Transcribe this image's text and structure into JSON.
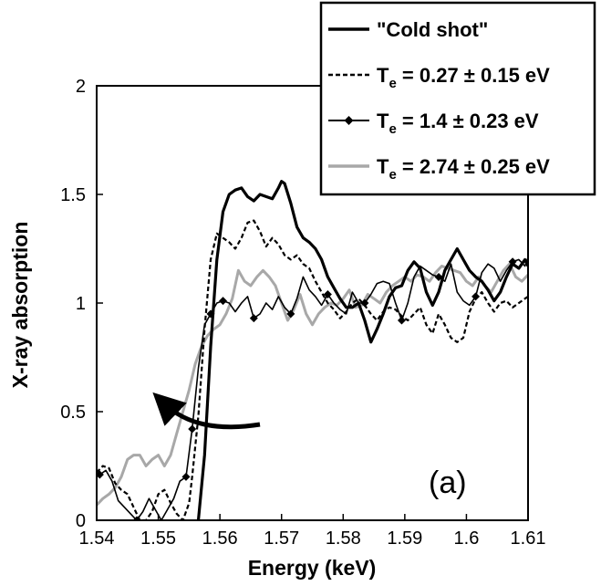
{
  "chart_data": {
    "type": "line",
    "title": "",
    "xlabel": "Energy (keV)",
    "ylabel": "X-ray absorption",
    "panel_label": "(a)",
    "xlim": [
      1.54,
      1.61
    ],
    "ylim": [
      0,
      2
    ],
    "xticks": [
      1.54,
      1.55,
      1.56,
      1.57,
      1.58,
      1.59,
      1.6,
      1.61
    ],
    "xtick_labels": [
      "1.54",
      "1.55",
      "1.56",
      "1.57",
      "1.58",
      "1.59",
      "1.6",
      "1.61"
    ],
    "yticks": [
      0,
      0.5,
      1,
      1.5,
      2
    ],
    "ytick_labels": [
      "0",
      "0.5",
      "1",
      "1.5",
      "2"
    ],
    "grid": false,
    "legend_position": "top-right",
    "annotation": "curved arrow pointing toward lower energy",
    "series": [
      {
        "name": "\"Cold shot\"",
        "legend_main": "\"Cold shot\"",
        "legend_sub": "",
        "legend_tail": "",
        "style": "solid-thick",
        "color": "#000000",
        "x": [
          1.5565,
          1.5575,
          1.5585,
          1.5595,
          1.5605,
          1.5615,
          1.5625,
          1.5635,
          1.5645,
          1.5655,
          1.5665,
          1.5675,
          1.5685,
          1.5695,
          1.57,
          1.5705,
          1.5715,
          1.5725,
          1.5735,
          1.5745,
          1.5755,
          1.5765,
          1.5775,
          1.5785,
          1.5795,
          1.5805,
          1.5815,
          1.5825,
          1.5835,
          1.5845,
          1.5855,
          1.5865,
          1.5875,
          1.5885,
          1.5895,
          1.5905,
          1.5915,
          1.5925,
          1.5935,
          1.5945,
          1.5955,
          1.5965,
          1.5975,
          1.5985,
          1.5995,
          1.6005,
          1.6015,
          1.6025,
          1.6035,
          1.6045,
          1.6055,
          1.6065,
          1.6075,
          1.6085,
          1.6095,
          1.61
        ],
        "y": [
          0.0,
          0.3,
          0.8,
          1.2,
          1.42,
          1.5,
          1.52,
          1.53,
          1.49,
          1.47,
          1.5,
          1.49,
          1.48,
          1.53,
          1.56,
          1.55,
          1.46,
          1.35,
          1.3,
          1.28,
          1.25,
          1.2,
          1.12,
          1.07,
          1.02,
          0.98,
          0.98,
          1.0,
          0.92,
          0.82,
          0.88,
          0.95,
          1.03,
          1.07,
          1.08,
          1.15,
          1.19,
          1.16,
          1.05,
          0.99,
          1.05,
          1.15,
          1.2,
          1.25,
          1.2,
          1.15,
          1.12,
          1.1,
          1.06,
          1.01,
          1.05,
          1.12,
          1.18,
          1.16,
          1.2,
          1.17
        ]
      },
      {
        "name": "Te = 0.27 ± 0.15 eV",
        "legend_main": "T",
        "legend_sub": "e",
        "legend_tail": " = 0.27 ± 0.15 eV",
        "style": "dashed",
        "color": "#000000",
        "x": [
          1.54,
          1.541,
          1.542,
          1.543,
          1.544,
          1.545,
          1.546,
          1.547,
          1.548,
          1.549,
          1.55,
          1.551,
          1.552,
          1.553,
          1.554,
          1.555,
          1.5555,
          1.5565,
          1.5575,
          1.5585,
          1.5595,
          1.5605,
          1.5615,
          1.5625,
          1.5635,
          1.5645,
          1.5655,
          1.5665,
          1.5675,
          1.5685,
          1.5695,
          1.5705,
          1.5715,
          1.5725,
          1.5735,
          1.5745,
          1.5755,
          1.5765,
          1.5775,
          1.5785,
          1.5795,
          1.5805,
          1.5815,
          1.5825,
          1.5835,
          1.5845,
          1.5855,
          1.5865,
          1.5875,
          1.5885,
          1.5895,
          1.5905,
          1.5915,
          1.5925,
          1.5935,
          1.5945,
          1.5955,
          1.5965,
          1.5975,
          1.5985,
          1.5995,
          1.6005,
          1.6015,
          1.6025,
          1.6035,
          1.6045,
          1.6055,
          1.6065,
          1.6075,
          1.6085,
          1.6095,
          1.61
        ],
        "y": [
          0.22,
          0.25,
          0.24,
          0.17,
          0.14,
          0.12,
          0.06,
          0.0,
          0.0,
          0.04,
          0.12,
          0.14,
          0.08,
          0.03,
          0.0,
          0.08,
          0.2,
          0.48,
          0.88,
          1.2,
          1.32,
          1.3,
          1.28,
          1.25,
          1.3,
          1.37,
          1.38,
          1.33,
          1.26,
          1.3,
          1.27,
          1.22,
          1.2,
          1.22,
          1.18,
          1.16,
          1.1,
          1.05,
          1.0,
          0.97,
          0.93,
          0.96,
          1.0,
          1.02,
          0.99,
          0.95,
          0.92,
          0.96,
          0.98,
          0.97,
          0.94,
          0.92,
          0.95,
          0.98,
          0.9,
          0.86,
          0.95,
          0.9,
          0.84,
          0.82,
          0.84,
          0.96,
          1.02,
          1.05,
          1.0,
          0.96,
          1.0,
          1.01,
          0.98,
          1.0,
          1.02,
          1.03
        ]
      },
      {
        "name": "Te = 1.4 ± 0.23 eV",
        "legend_main": "T",
        "legend_sub": "e",
        "legend_tail": " = 1.4 ± 0.23 eV",
        "style": "solid-diamond",
        "color": "#000000",
        "marker_x": [
          1.5405,
          1.5465,
          1.5545,
          1.5555,
          1.5585,
          1.5605,
          1.5655,
          1.5715,
          1.5775,
          1.5835,
          1.5895,
          1.5955,
          1.6015,
          1.6075
        ],
        "x": [
          1.54,
          1.5405,
          1.5415,
          1.5425,
          1.5435,
          1.5445,
          1.5455,
          1.5465,
          1.5475,
          1.5485,
          1.5495,
          1.5505,
          1.5515,
          1.5525,
          1.5535,
          1.5545,
          1.5555,
          1.5565,
          1.5575,
          1.5585,
          1.5595,
          1.5605,
          1.5615,
          1.5625,
          1.5635,
          1.5645,
          1.5655,
          1.5665,
          1.5675,
          1.5685,
          1.5695,
          1.5705,
          1.5715,
          1.5725,
          1.5735,
          1.5745,
          1.5755,
          1.5765,
          1.5775,
          1.5785,
          1.5795,
          1.5805,
          1.5815,
          1.5825,
          1.5835,
          1.5845,
          1.5855,
          1.5865,
          1.5875,
          1.5885,
          1.5895,
          1.5905,
          1.5915,
          1.5925,
          1.5935,
          1.5945,
          1.5955,
          1.5965,
          1.5975,
          1.5985,
          1.5995,
          1.6005,
          1.6015,
          1.6025,
          1.6035,
          1.6045,
          1.6055,
          1.6065,
          1.6075,
          1.6085,
          1.6095,
          1.61
        ],
        "y": [
          0.2,
          0.21,
          0.23,
          0.18,
          0.09,
          0.06,
          0.03,
          0.0,
          0.04,
          0.1,
          0.05,
          0.0,
          0.05,
          0.1,
          0.18,
          0.2,
          0.42,
          0.7,
          0.9,
          0.95,
          1.0,
          1.01,
          1.0,
          0.96,
          1.0,
          1.03,
          0.93,
          0.95,
          1.0,
          0.97,
          1.03,
          0.98,
          0.95,
          1.02,
          1.12,
          1.06,
          1.03,
          0.99,
          1.04,
          1.0,
          0.97,
          0.95,
          1.05,
          1.0,
          1.0,
          1.04,
          1.09,
          1.1,
          1.09,
          1.0,
          0.92,
          1.0,
          1.12,
          1.17,
          1.15,
          1.13,
          1.12,
          1.1,
          1.18,
          1.05,
          1.01,
          0.99,
          1.03,
          1.14,
          1.18,
          1.16,
          1.1,
          1.15,
          1.19,
          1.2,
          1.17,
          1.21
        ]
      },
      {
        "name": "Te = 2.74 ± 0.25 eV",
        "legend_main": "T",
        "legend_sub": "e",
        "legend_tail": " = 2.74 ± 0.25 eV",
        "style": "solid-gray",
        "color": "#a8a8a8",
        "x": [
          1.54,
          1.541,
          1.542,
          1.543,
          1.544,
          1.545,
          1.546,
          1.547,
          1.548,
          1.549,
          1.55,
          1.551,
          1.552,
          1.553,
          1.554,
          1.555,
          1.556,
          1.557,
          1.558,
          1.559,
          1.56,
          1.561,
          1.562,
          1.563,
          1.564,
          1.565,
          1.566,
          1.567,
          1.568,
          1.569,
          1.57,
          1.571,
          1.572,
          1.573,
          1.574,
          1.575,
          1.576,
          1.577,
          1.578,
          1.579,
          1.58,
          1.581,
          1.582,
          1.583,
          1.584,
          1.585,
          1.586,
          1.587,
          1.588,
          1.589,
          1.59,
          1.591,
          1.592,
          1.593,
          1.594,
          1.595,
          1.596,
          1.597,
          1.598,
          1.599,
          1.6,
          1.601,
          1.602,
          1.603,
          1.604,
          1.605,
          1.606,
          1.607,
          1.608,
          1.609,
          1.61
        ],
        "y": [
          0.07,
          0.1,
          0.12,
          0.15,
          0.2,
          0.28,
          0.3,
          0.3,
          0.25,
          0.28,
          0.3,
          0.25,
          0.3,
          0.4,
          0.5,
          0.6,
          0.72,
          0.8,
          0.85,
          0.88,
          0.9,
          0.95,
          1.02,
          1.15,
          1.1,
          1.08,
          1.12,
          1.15,
          1.12,
          1.08,
          1.0,
          0.92,
          0.97,
          1.04,
          0.95,
          0.9,
          0.95,
          0.98,
          1.0,
          0.99,
          1.02,
          1.06,
          0.98,
          0.99,
          1.04,
          1.02,
          1.0,
          1.05,
          1.08,
          1.1,
          1.12,
          1.1,
          1.13,
          1.12,
          1.1,
          1.14,
          1.17,
          1.16,
          1.15,
          1.14,
          1.1,
          1.08,
          1.12,
          1.08,
          1.05,
          1.1,
          1.15,
          1.18,
          1.12,
          1.1,
          1.13
        ]
      }
    ]
  }
}
